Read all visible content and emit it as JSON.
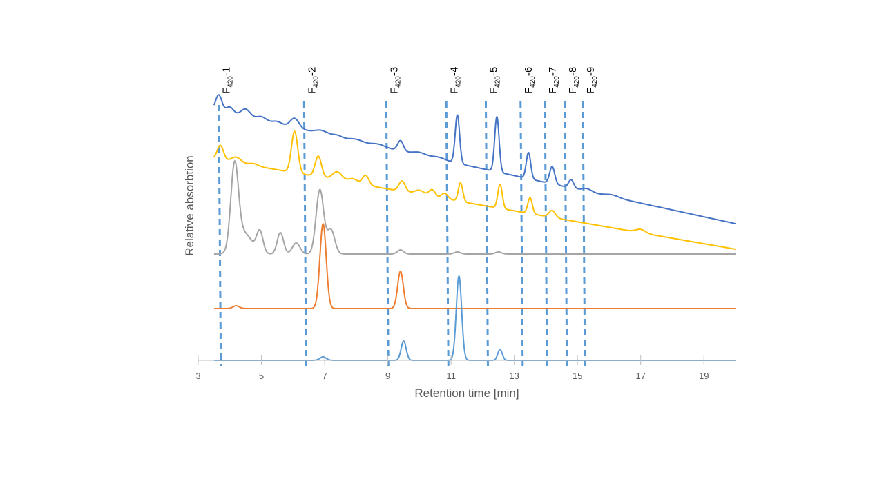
{
  "chart_data": {
    "type": "line",
    "xlabel": "Retention time [min]",
    "ylabel": "Relative absorbtion",
    "xlim": [
      3,
      20
    ],
    "x_ticks": [
      3,
      5,
      7,
      9,
      11,
      13,
      15,
      17,
      19
    ],
    "y_ticks_shown": false,
    "grid": false,
    "legend": "none",
    "colors": {
      "axis": "#bfbfbf",
      "tick_text": "#595959",
      "marker_lines": "#5b9bd5"
    },
    "peak_markers": [
      {
        "label_main": "F",
        "label_sub": "420",
        "label_suffix": "-1",
        "x": 3.65
      },
      {
        "label_main": "F",
        "label_sub": "420",
        "label_suffix": "-2",
        "x": 6.35
      },
      {
        "label_main": "F",
        "label_sub": "420",
        "label_suffix": "-3",
        "x": 8.95
      },
      {
        "label_main": "F",
        "label_sub": "420",
        "label_suffix": "-4",
        "x": 10.85
      },
      {
        "label_main": "F",
        "label_sub": "420",
        "label_suffix": "-5",
        "x": 12.1
      },
      {
        "label_main": "F",
        "label_sub": "420",
        "label_suffix": "-6",
        "x": 13.2
      },
      {
        "label_main": "F",
        "label_sub": "420",
        "label_suffix": "-7",
        "x": 13.97
      },
      {
        "label_main": "F",
        "label_sub": "420",
        "label_suffix": "-8",
        "x": 14.6
      },
      {
        "label_main": "F",
        "label_sub": "420",
        "label_suffix": "-9",
        "x": 15.17
      }
    ],
    "series": [
      {
        "color": "#4472c4",
        "baseline_start": 212,
        "baseline_end": 48,
        "start_x": 3.5,
        "start_y": 208,
        "peaks": [
          [
            3.65,
            24,
            0.1
          ],
          [
            4.0,
            10,
            0.12
          ],
          [
            4.5,
            12,
            0.15
          ],
          [
            5.0,
            6,
            0.15
          ],
          [
            5.5,
            4,
            0.15
          ],
          [
            6.05,
            14,
            0.14
          ],
          [
            6.9,
            5,
            0.2
          ],
          [
            7.4,
            3,
            0.15
          ],
          [
            8.0,
            3,
            0.2
          ],
          [
            8.7,
            3,
            0.2
          ],
          [
            9.4,
            15,
            0.09
          ],
          [
            10.0,
            4,
            0.2
          ],
          [
            10.6,
            3,
            0.2
          ],
          [
            11.2,
            70,
            0.07
          ],
          [
            12.45,
            80,
            0.07
          ],
          [
            13.45,
            38,
            0.07
          ],
          [
            14.2,
            25,
            0.08
          ],
          [
            14.8,
            12,
            0.08
          ],
          [
            15.3,
            4,
            0.15
          ],
          [
            16.1,
            3,
            0.2
          ]
        ]
      },
      {
        "color": "#ffc000",
        "baseline_start": 155,
        "baseline_end": 24,
        "start_x": 3.5,
        "start_y": 150,
        "peaks": [
          [
            3.7,
            21,
            0.1
          ],
          [
            4.2,
            8,
            0.15
          ],
          [
            4.75,
            3,
            0.15
          ],
          [
            6.05,
            60,
            0.1
          ],
          [
            6.8,
            30,
            0.1
          ],
          [
            7.4,
            12,
            0.15
          ],
          [
            7.9,
            6,
            0.15
          ],
          [
            8.3,
            14,
            0.1
          ],
          [
            9.45,
            15,
            0.1
          ],
          [
            10.0,
            6,
            0.15
          ],
          [
            10.4,
            10,
            0.1
          ],
          [
            10.8,
            8,
            0.1
          ],
          [
            11.3,
            27,
            0.07
          ],
          [
            12.55,
            35,
            0.07
          ],
          [
            13.5,
            23,
            0.07
          ],
          [
            14.2,
            10,
            0.1
          ],
          [
            17.0,
            5,
            0.15
          ]
        ]
      },
      {
        "color": "#a5a5a5",
        "baseline_start": 78,
        "baseline_end": 78,
        "start_x": 3.5,
        "start_y": 77,
        "peaks": [
          [
            4.15,
            120,
            0.12
          ],
          [
            4.45,
            30,
            0.25
          ],
          [
            4.95,
            31,
            0.1
          ],
          [
            5.6,
            31,
            0.1
          ],
          [
            6.1,
            16,
            0.12
          ],
          [
            6.85,
            93,
            0.12
          ],
          [
            7.2,
            35,
            0.12
          ],
          [
            9.4,
            6,
            0.1
          ],
          [
            11.2,
            3,
            0.1
          ],
          [
            12.5,
            3,
            0.1
          ]
        ]
      },
      {
        "color": "#ed7d31",
        "baseline_start": 40,
        "baseline_end": 40,
        "start_x": 3.5,
        "start_y": 40,
        "peaks": [
          [
            4.2,
            4,
            0.1
          ],
          [
            6.95,
            123,
            0.1
          ],
          [
            9.4,
            54,
            0.09
          ]
        ]
      },
      {
        "color": "#5b9bd5",
        "baseline_start": 0,
        "baseline_end": 0,
        "start_x": 3.5,
        "start_y": 0,
        "peaks": [
          [
            6.95,
            5,
            0.1
          ],
          [
            9.5,
            28,
            0.08
          ],
          [
            11.25,
            122,
            0.085
          ],
          [
            12.55,
            16,
            0.07
          ]
        ]
      }
    ]
  }
}
